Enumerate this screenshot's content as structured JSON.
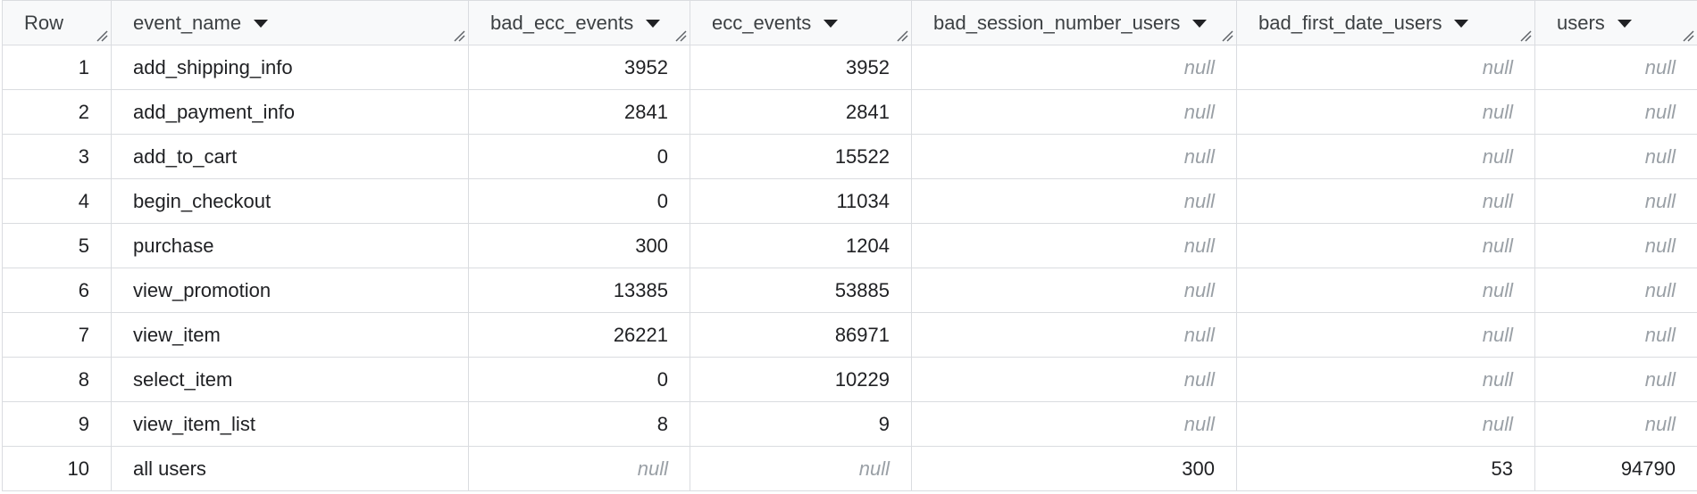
{
  "table": {
    "columns": [
      {
        "key": "row",
        "label": "Row",
        "sortable": false,
        "align": "right"
      },
      {
        "key": "event_name",
        "label": "event_name",
        "sortable": true,
        "align": "left"
      },
      {
        "key": "bad_ecc_events",
        "label": "bad_ecc_events",
        "sortable": true,
        "align": "right"
      },
      {
        "key": "ecc_events",
        "label": "ecc_events",
        "sortable": true,
        "align": "right"
      },
      {
        "key": "bad_session_number_users",
        "label": "bad_session_number_users",
        "sortable": true,
        "align": "right"
      },
      {
        "key": "bad_first_date_users",
        "label": "bad_first_date_users",
        "sortable": true,
        "align": "right"
      },
      {
        "key": "users",
        "label": "users",
        "sortable": true,
        "align": "right"
      }
    ],
    "null_label": "null",
    "rows": [
      [
        "1",
        "add_shipping_info",
        "3952",
        "3952",
        null,
        null,
        null
      ],
      [
        "2",
        "add_payment_info",
        "2841",
        "2841",
        null,
        null,
        null
      ],
      [
        "3",
        "add_to_cart",
        "0",
        "15522",
        null,
        null,
        null
      ],
      [
        "4",
        "begin_checkout",
        "0",
        "11034",
        null,
        null,
        null
      ],
      [
        "5",
        "purchase",
        "300",
        "1204",
        null,
        null,
        null
      ],
      [
        "6",
        "view_promotion",
        "13385",
        "53885",
        null,
        null,
        null
      ],
      [
        "7",
        "view_item",
        "26221",
        "86971",
        null,
        null,
        null
      ],
      [
        "8",
        "select_item",
        "0",
        "10229",
        null,
        null,
        null
      ],
      [
        "9",
        "view_item_list",
        "8",
        "9",
        null,
        null,
        null
      ],
      [
        "10",
        "all users",
        null,
        null,
        "300",
        "53",
        "94790"
      ]
    ]
  }
}
